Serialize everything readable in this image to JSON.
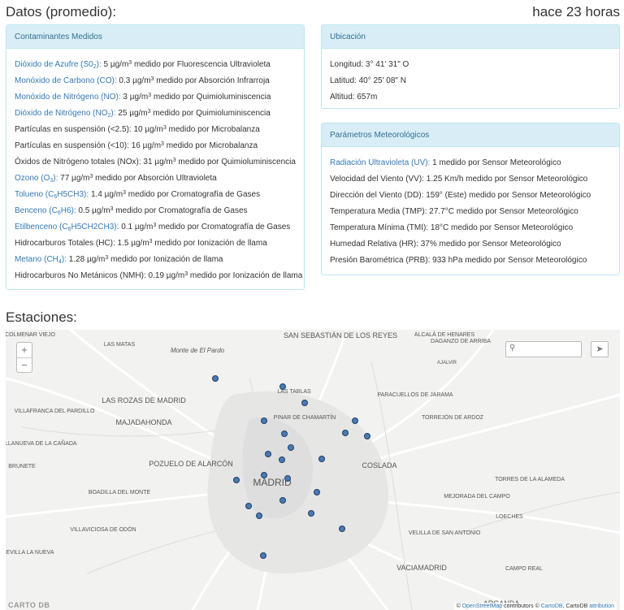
{
  "header": {
    "title": "Datos (promedio):",
    "updated": "hace 23 horas"
  },
  "contaminantes": {
    "title": "Contaminantes Medidos",
    "items": [
      {
        "name_pre": "Dióxido de Azufre (S0",
        "name_sub": "2",
        "name_post": "):",
        "linked": true,
        "value": "5 µg/m",
        "sup": "3",
        "tail": " medido por Fluorescencia Ultravioleta"
      },
      {
        "name_pre": "Monóxido de Carbono (CO):",
        "name_sub": "",
        "name_post": "",
        "linked": true,
        "value": "0.3 µg/m",
        "sup": "3",
        "tail": " medido por Absorción Infrarroja"
      },
      {
        "name_pre": "Monóxido de Nitrógeno (NO):",
        "name_sub": "",
        "name_post": "",
        "linked": true,
        "value": "3 µg/m",
        "sup": "3",
        "tail": " medido por Quimioluminiscencia"
      },
      {
        "name_pre": "Dióxido de Nitrógeno (NO",
        "name_sub": "2",
        "name_post": "):",
        "linked": true,
        "value": "25 µg/m",
        "sup": "3",
        "tail": " medido por Quimioluminiscencia"
      },
      {
        "name_pre": "Partículas en suspensión (<2.5):",
        "name_sub": "",
        "name_post": "",
        "linked": false,
        "value": "10 µg/m",
        "sup": "3",
        "tail": " medido por Microbalanza"
      },
      {
        "name_pre": "Partículas en suspensión (<10):",
        "name_sub": "",
        "name_post": "",
        "linked": false,
        "value": "16 µg/m",
        "sup": "3",
        "tail": " medido por Microbalanza"
      },
      {
        "name_pre": "Óxidos de Nitrógeno totales (NOx):",
        "name_sub": "",
        "name_post": "",
        "linked": false,
        "value": "31 µg/m",
        "sup": "3",
        "tail": " medido por Quimioluminiscencia"
      },
      {
        "name_pre": "Ozono (O",
        "name_sub": "3",
        "name_post": "):",
        "linked": true,
        "value": "77 µg/m",
        "sup": "3",
        "tail": " medido por Absorción Ultravioleta"
      },
      {
        "name_pre": "Tolueno (C",
        "name_sub": "6",
        "name_post": "H5CH3):",
        "linked": true,
        "value": "1.4 µg/m",
        "sup": "3",
        "tail": " medido por Cromatografía de Gases"
      },
      {
        "name_pre": "Benceno (C",
        "name_sub": "6",
        "name_post": "H6):",
        "linked": true,
        "value": "0.5 µg/m",
        "sup": "3",
        "tail": " medido por Cromatografía de Gases"
      },
      {
        "name_pre": "Etilbenceno (C",
        "name_sub": "6",
        "name_post": "H5CH2CH3):",
        "linked": true,
        "value": "0.1 µg/m",
        "sup": "3",
        "tail": " medido por Cromatografía de Gases"
      },
      {
        "name_pre": "Hidrocarburos Totales (HC):",
        "name_sub": "",
        "name_post": "",
        "linked": false,
        "value": "1.5 µg/m",
        "sup": "3",
        "tail": " medido por Ionización de llama"
      },
      {
        "name_pre": "Metano (CH",
        "name_sub": "4",
        "name_post": "):",
        "linked": true,
        "value": "1.28 µg/m",
        "sup": "3",
        "tail": " medido por Ionización de llama"
      },
      {
        "name_pre": "Hidrocarburos No Metánicos (NMH):",
        "name_sub": "",
        "name_post": "",
        "linked": false,
        "value": "0.19 µg/m",
        "sup": "3",
        "tail": " medido por Ionización de llama"
      }
    ]
  },
  "ubicacion": {
    "title": "Ubicación",
    "longitud": "Longitud: 3° 41' 31\" O",
    "latitud": "Latitud: 40° 25' 08\" N",
    "altitud": "Altitud: 657m"
  },
  "meteo": {
    "title": "Parámetros Meteorológicos",
    "items": [
      {
        "name": "Radiación Ultravioleta (UV):",
        "linked": true,
        "rest": " 1 medido por Sensor Meteorológico"
      },
      {
        "name": "Velocidad del Viento (VV):",
        "linked": false,
        "rest": " 1.25 Km/h medido por Sensor Meteorológico"
      },
      {
        "name": "Dirección del Viento (DD):",
        "linked": false,
        "rest": " 159° (Este) medido por Sensor Meteorológico"
      },
      {
        "name": "Temperatura Media (TMP):",
        "linked": false,
        "rest": " 27.7°C medido por Sensor Meteorológico"
      },
      {
        "name": "Temperatura Mínima (TMI):",
        "linked": false,
        "rest": " 18°C medido por Sensor Meteorológico"
      },
      {
        "name": "Humedad Relativa (HR):",
        "linked": false,
        "rest": " 37% medido por Sensor Meteorológico"
      },
      {
        "name": "Presión Barométrica (PRB):",
        "linked": false,
        "rest": " 933 hPa medido por Sensor Meteorológico"
      }
    ]
  },
  "estaciones": {
    "title": "Estaciones:",
    "zoom_in": "+",
    "zoom_out": "−",
    "search_placeholder": "",
    "attribution": {
      "prefix": "© ",
      "osm": "OpenStreetMap",
      "mid": " contributors © ",
      "cartodb": "CartoDB",
      "mid2": ", CartoDB ",
      "attr": "attribution"
    },
    "carto_logo": "CARTO DB",
    "place_labels": [
      "COLMENAR VIEJO",
      "LAS MATAS",
      "Monte de El Pardo",
      "SAN SEBASTIÁN DE LOS REYES",
      "DAGANZO DE ARRIBA",
      "ALCALÁ DE HENARES",
      "AJALVIR",
      "LAS TABLAS",
      "LAS ROZAS DE MADRID",
      "VILLAFRANCA DEL PARDILLO",
      "MAJADAHONDA",
      "PINAR DE CHAMARTÍN",
      "PARACUELLOS DE JARAMA",
      "TORREJÓN DE ARDOZ",
      "VILLANUEVA DE LA CAÑADA",
      "BRUNETE",
      "POZUELO DE ALARCÓN",
      "COSLADA",
      "MADRID",
      "BOADILLA DEL MONTE",
      "VILLAVICIOSA DE ODÓN",
      "MEJORADA DEL CAMPO",
      "TORRES DE LA ALAMEDA",
      "LOECHES",
      "VELILLA DE SAN ANTONIO",
      "EVILLA LA NUEVA",
      "VACIAMADRID",
      "CAMPO REAL",
      "ARGANDA"
    ]
  }
}
